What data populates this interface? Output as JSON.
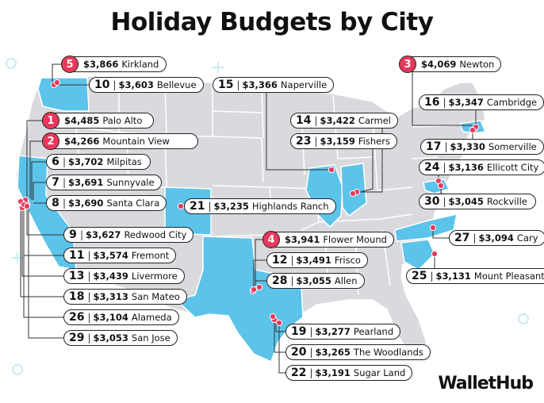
{
  "title": "Holiday Budgets by City",
  "logo": "WalletHub",
  "colors": {
    "highlight": "#5cc3ea",
    "land": "#d9dadd",
    "border": "#ffffff",
    "marker": "#e8395b",
    "top_badge": "#e8395b"
  },
  "highlighted_states": [
    "Washington",
    "California",
    "Colorado",
    "Illinois",
    "Indiana",
    "Texas",
    "Maryland",
    "North Carolina",
    "South Carolina",
    "Massachusetts"
  ],
  "cities": [
    {
      "rank": "1",
      "amount": "$4,485",
      "city": "Palo Alto"
    },
    {
      "rank": "2",
      "amount": "$4,266",
      "city": "Mountain View"
    },
    {
      "rank": "3",
      "amount": "$4,069",
      "city": "Newton"
    },
    {
      "rank": "4",
      "amount": "$3,941",
      "city": "Flower Mound"
    },
    {
      "rank": "5",
      "amount": "$3,866",
      "city": "Kirkland"
    },
    {
      "rank": "6",
      "amount": "$3,702",
      "city": "Milpitas"
    },
    {
      "rank": "7",
      "amount": "$3,691",
      "city": "Sunnyvale"
    },
    {
      "rank": "8",
      "amount": "$3,690",
      "city": "Santa Clara"
    },
    {
      "rank": "9",
      "amount": "$3,627",
      "city": "Redwood City"
    },
    {
      "rank": "10",
      "amount": "$3,603",
      "city": "Bellevue"
    },
    {
      "rank": "11",
      "amount": "$3,574",
      "city": "Fremont"
    },
    {
      "rank": "12",
      "amount": "$3,491",
      "city": "Frisco"
    },
    {
      "rank": "13",
      "amount": "$3,439",
      "city": "Livermore"
    },
    {
      "rank": "14",
      "amount": "$3,422",
      "city": "Carmel"
    },
    {
      "rank": "15",
      "amount": "$3,366",
      "city": "Naperville"
    },
    {
      "rank": "16",
      "amount": "$3,347",
      "city": "Cambridge"
    },
    {
      "rank": "17",
      "amount": "$3,330",
      "city": "Somerville"
    },
    {
      "rank": "18",
      "amount": "$3,313",
      "city": "San Mateo"
    },
    {
      "rank": "19",
      "amount": "$3,277",
      "city": "Pearland"
    },
    {
      "rank": "20",
      "amount": "$3,265",
      "city": "The Woodlands"
    },
    {
      "rank": "21",
      "amount": "$3,235",
      "city": "Highlands Ranch"
    },
    {
      "rank": "22",
      "amount": "$3,191",
      "city": "Sugar Land"
    },
    {
      "rank": "23",
      "amount": "$3,159",
      "city": "Fishers"
    },
    {
      "rank": "24",
      "amount": "$3,136",
      "city": "Ellicott City"
    },
    {
      "rank": "25",
      "amount": "$3,131",
      "city": "Mount Pleasant"
    },
    {
      "rank": "26",
      "amount": "$3,104",
      "city": "Alameda"
    },
    {
      "rank": "27",
      "amount": "$3,094",
      "city": "Cary"
    },
    {
      "rank": "28",
      "amount": "$3,055",
      "city": "Allen"
    },
    {
      "rank": "29",
      "amount": "$3,053",
      "city": "San Jose"
    },
    {
      "rank": "30",
      "amount": "$3,045",
      "city": "Rockville"
    }
  ]
}
